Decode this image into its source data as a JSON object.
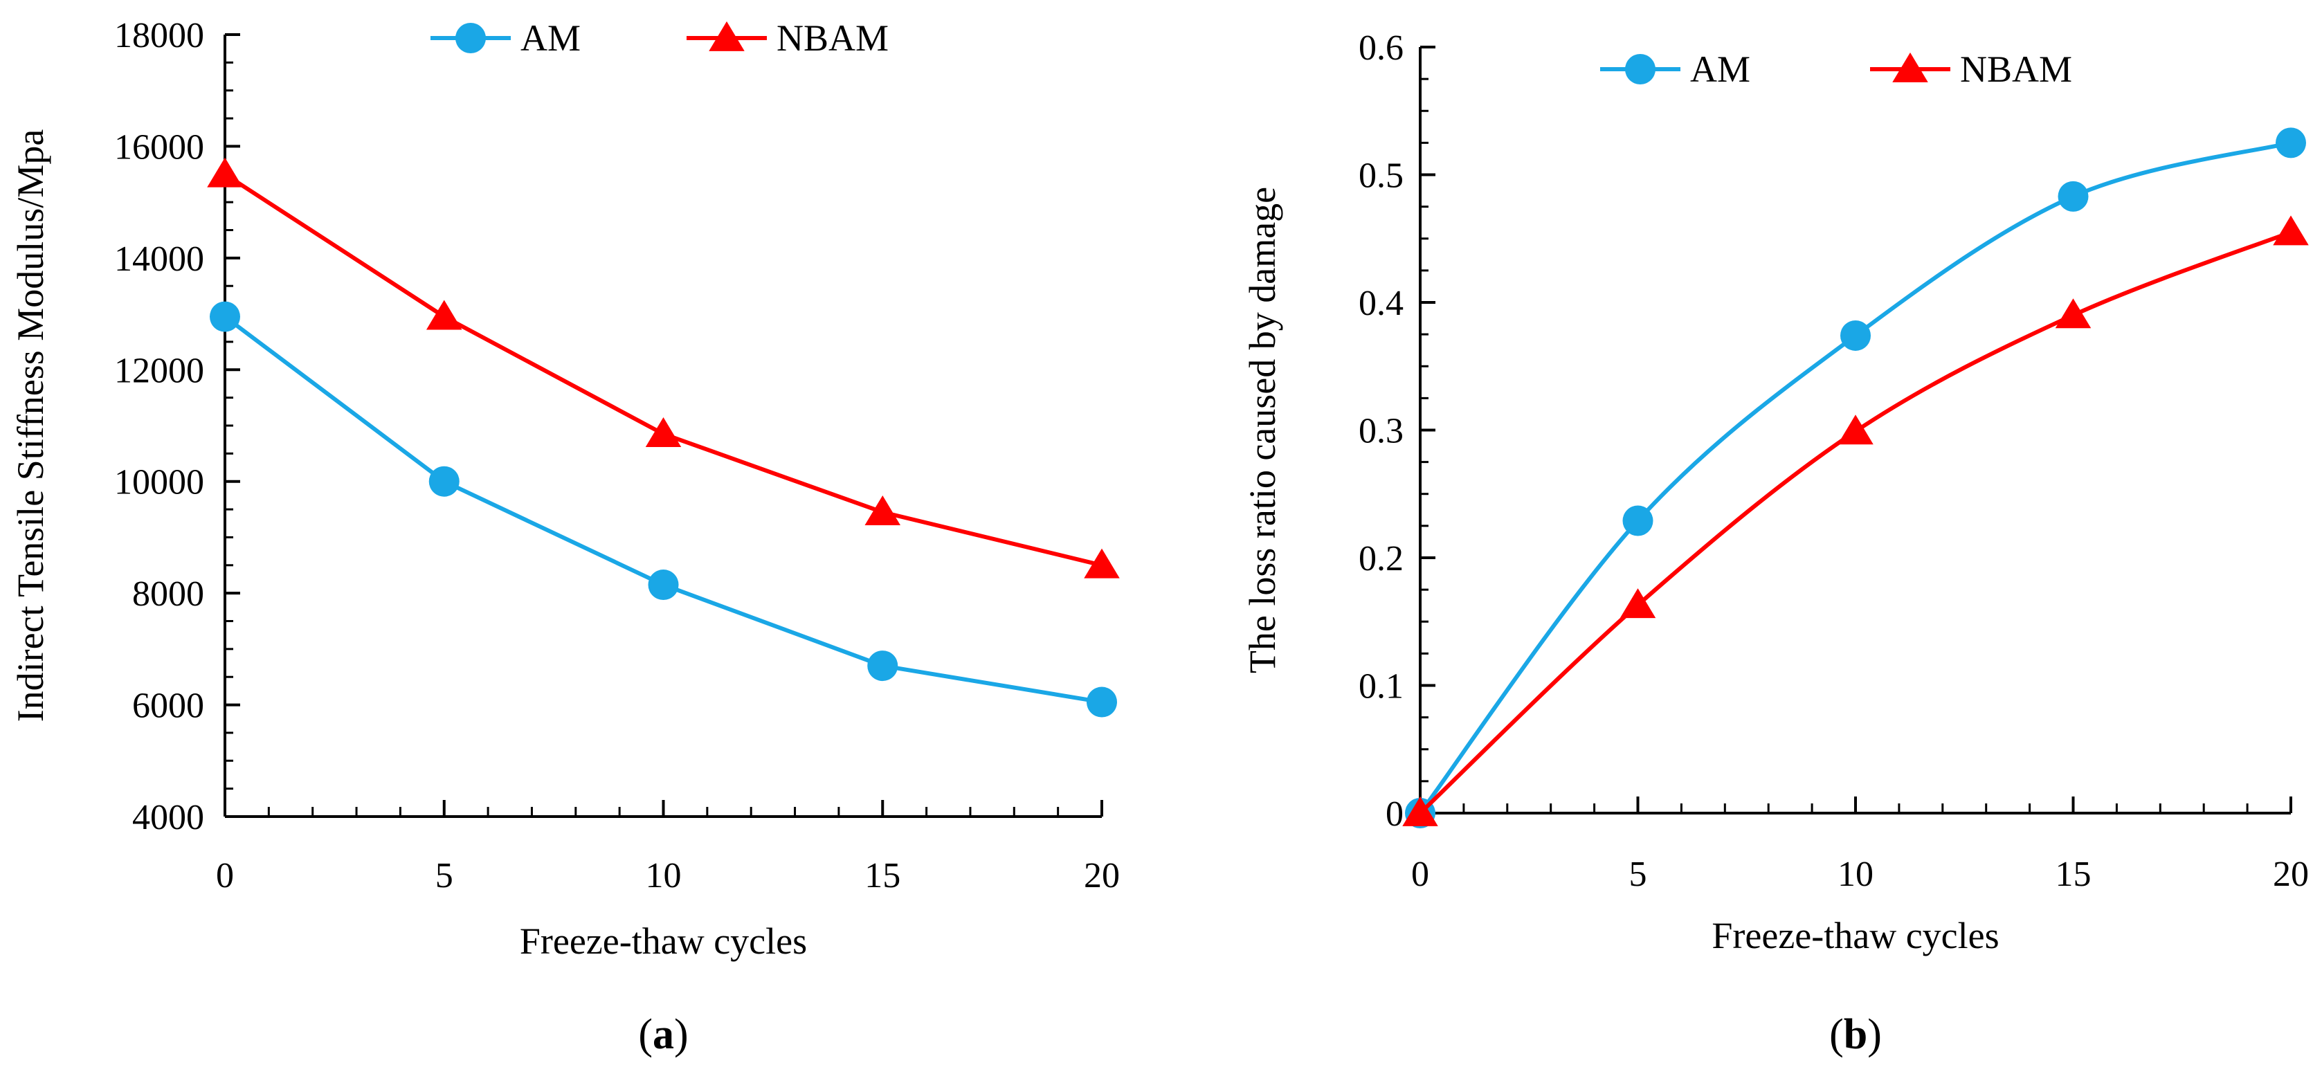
{
  "chart_data": [
    {
      "id": "a",
      "type": "line",
      "panel_label": "a",
      "title": "",
      "xlabel": "Freeze-thaw  cycles",
      "ylabel": "Indirect  Tensile Stiffness Modulus/Mpa",
      "x": [
        0,
        5,
        10,
        15,
        20
      ],
      "x_ticks": [
        "0",
        "5",
        "10",
        "15",
        "20"
      ],
      "xlim": [
        0,
        20
      ],
      "y_ticks": [
        "4000",
        "6000",
        "8000",
        "10000",
        "12000",
        "14000",
        "16000",
        "18000"
      ],
      "ylim": [
        4000,
        18000
      ],
      "grid": false,
      "legend_position": "top",
      "series": [
        {
          "name": "AM",
          "color": "#1aa7e6",
          "marker": "circle",
          "values": [
            12950,
            10000,
            8150,
            6700,
            6050
          ]
        },
        {
          "name": "NBAM",
          "color": "#ff0000",
          "marker": "triangle",
          "values": [
            15500,
            12950,
            10850,
            9450,
            8500
          ]
        }
      ]
    },
    {
      "id": "b",
      "type": "line",
      "panel_label": "b",
      "title": "",
      "xlabel": "Freeze-thaw  cycles",
      "ylabel": "The loss  ratio caused  by damage",
      "x": [
        0,
        5,
        10,
        15,
        20
      ],
      "x_ticks": [
        "0",
        "5",
        "10",
        "15",
        "20"
      ],
      "xlim": [
        0,
        20
      ],
      "y_ticks": [
        "0",
        "0.1",
        "0.2",
        "0.3",
        "0.4",
        "0.5",
        "0.6"
      ],
      "ylim": [
        0,
        0.6
      ],
      "grid": false,
      "legend_position": "top",
      "series": [
        {
          "name": "AM",
          "color": "#1aa7e6",
          "marker": "circle",
          "values": [
            0,
            0.229,
            0.374,
            0.483,
            0.525
          ]
        },
        {
          "name": "NBAM",
          "color": "#ff0000",
          "marker": "triangle",
          "values": [
            0,
            0.163,
            0.299,
            0.39,
            0.455
          ]
        }
      ]
    }
  ]
}
